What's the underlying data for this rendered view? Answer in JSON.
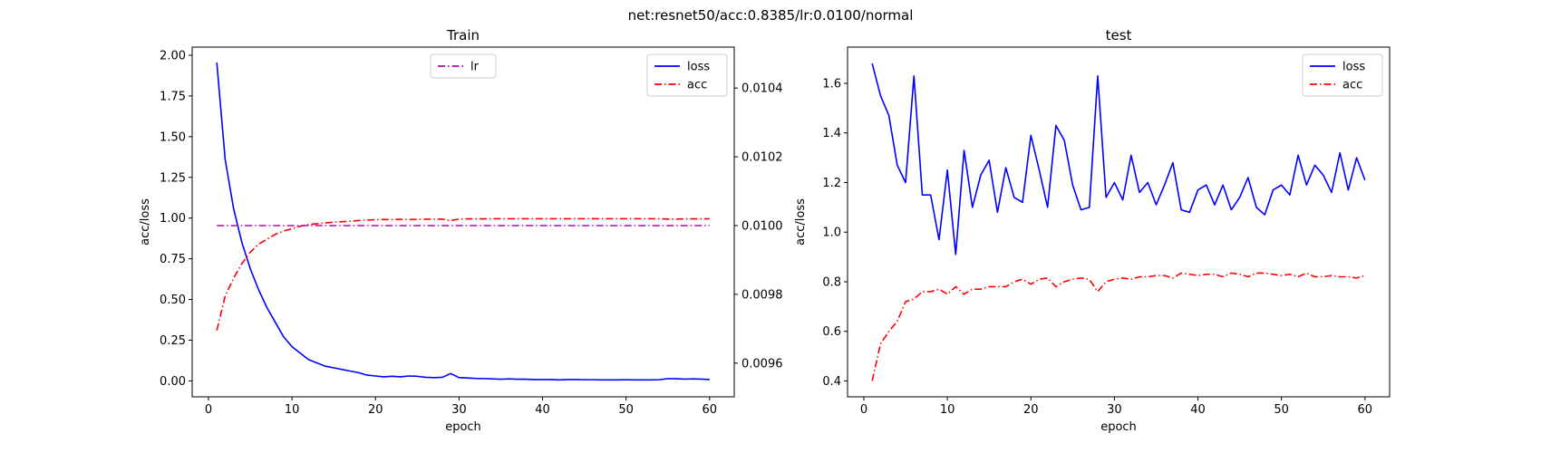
{
  "suptitle": "net:resnet50/acc:0.8385/lr:0.0100/normal",
  "chart_data": [
    {
      "type": "line",
      "title": "Train",
      "xlabel": "epoch",
      "ylabel": "acc/loss",
      "xlim": [
        -1.95,
        62.95
      ],
      "ylim": [
        -0.098,
        2.05
      ],
      "xticks": [
        0,
        10,
        20,
        30,
        40,
        50,
        60
      ],
      "yticks": [
        0.0,
        0.25,
        0.5,
        0.75,
        1.0,
        1.25,
        1.5,
        1.75,
        2.0
      ],
      "ytick_labels": [
        "0.00",
        "0.25",
        "0.50",
        "0.75",
        "1.00",
        "1.25",
        "1.50",
        "1.75",
        "2.00"
      ],
      "y2lim": [
        0.009502,
        0.010519
      ],
      "y2ticks": [
        0.0096,
        0.0098,
        0.01,
        0.0102,
        0.0104
      ],
      "y2tick_labels": [
        "0.0096",
        "0.0098",
        "0.0100",
        "0.0102",
        "0.0104"
      ],
      "x": [
        1,
        2,
        3,
        4,
        5,
        6,
        7,
        8,
        9,
        10,
        11,
        12,
        13,
        14,
        15,
        16,
        17,
        18,
        19,
        20,
        21,
        22,
        23,
        24,
        25,
        26,
        27,
        28,
        29,
        30,
        31,
        32,
        33,
        34,
        35,
        36,
        37,
        38,
        39,
        40,
        41,
        42,
        43,
        44,
        45,
        46,
        47,
        48,
        49,
        50,
        51,
        52,
        53,
        54,
        55,
        56,
        57,
        58,
        59,
        60
      ],
      "series": [
        {
          "name": "loss",
          "axis": "left",
          "color": "#0000ff",
          "style": "solid",
          "values": [
            1.955,
            1.36,
            1.06,
            0.85,
            0.69,
            0.56,
            0.45,
            0.36,
            0.27,
            0.21,
            0.17,
            0.13,
            0.11,
            0.09,
            0.08,
            0.07,
            0.06,
            0.05,
            0.035,
            0.03,
            0.025,
            0.028,
            0.025,
            0.03,
            0.028,
            0.022,
            0.02,
            0.022,
            0.045,
            0.02,
            0.018,
            0.015,
            0.014,
            0.012,
            0.01,
            0.012,
            0.01,
            0.01,
            0.008,
            0.008,
            0.008,
            0.006,
            0.008,
            0.008,
            0.007,
            0.007,
            0.006,
            0.006,
            0.006,
            0.007,
            0.006,
            0.006,
            0.006,
            0.007,
            0.014,
            0.013,
            0.011,
            0.012,
            0.011,
            0.008
          ]
        },
        {
          "name": "acc",
          "axis": "left",
          "color": "#ff0000",
          "style": "dashdot",
          "values": [
            0.31,
            0.52,
            0.63,
            0.72,
            0.79,
            0.84,
            0.87,
            0.9,
            0.92,
            0.935,
            0.95,
            0.96,
            0.965,
            0.97,
            0.975,
            0.978,
            0.98,
            0.985,
            0.988,
            0.99,
            0.991,
            0.991,
            0.992,
            0.991,
            0.992,
            0.993,
            0.993,
            0.993,
            0.984,
            0.994,
            0.995,
            0.995,
            0.995,
            0.996,
            0.996,
            0.996,
            0.996,
            0.996,
            0.996,
            0.996,
            0.996,
            0.996,
            0.996,
            0.996,
            0.996,
            0.996,
            0.996,
            0.996,
            0.996,
            0.996,
            0.996,
            0.996,
            0.996,
            0.996,
            0.994,
            0.994,
            0.995,
            0.995,
            0.995,
            0.996
          ]
        },
        {
          "name": "lr",
          "axis": "right",
          "color": "#bf00bf",
          "style": "dashdot",
          "values": [
            0.01,
            0.01,
            0.01,
            0.01,
            0.01,
            0.01,
            0.01,
            0.01,
            0.01,
            0.01,
            0.01,
            0.01,
            0.01,
            0.01,
            0.01,
            0.01,
            0.01,
            0.01,
            0.01,
            0.01,
            0.01,
            0.01,
            0.01,
            0.01,
            0.01,
            0.01,
            0.01,
            0.01,
            0.01,
            0.01,
            0.01,
            0.01,
            0.01,
            0.01,
            0.01,
            0.01,
            0.01,
            0.01,
            0.01,
            0.01,
            0.01,
            0.01,
            0.01,
            0.01,
            0.01,
            0.01,
            0.01,
            0.01,
            0.01,
            0.01,
            0.01,
            0.01,
            0.01,
            0.01,
            0.01,
            0.01,
            0.01,
            0.01,
            0.01,
            0.01
          ]
        }
      ],
      "legends": [
        {
          "placement": "upper-right",
          "entries": [
            "loss",
            "acc"
          ]
        },
        {
          "placement": "upper-center",
          "entries": [
            "lr"
          ]
        }
      ],
      "grid": false
    },
    {
      "type": "line",
      "title": "test",
      "xlabel": "epoch",
      "ylabel": "acc/loss",
      "xlim": [
        -1.95,
        62.95
      ],
      "ylim": [
        0.336,
        1.746
      ],
      "xticks": [
        0,
        10,
        20,
        30,
        40,
        50,
        60
      ],
      "yticks": [
        0.4,
        0.6,
        0.8,
        1.0,
        1.2,
        1.4,
        1.6
      ],
      "ytick_labels": [
        "0.4",
        "0.6",
        "0.8",
        "1.0",
        "1.2",
        "1.4",
        "1.6"
      ],
      "x": [
        1,
        2,
        3,
        4,
        5,
        6,
        7,
        8,
        9,
        10,
        11,
        12,
        13,
        14,
        15,
        16,
        17,
        18,
        19,
        20,
        21,
        22,
        23,
        24,
        25,
        26,
        27,
        28,
        29,
        30,
        31,
        32,
        33,
        34,
        35,
        36,
        37,
        38,
        39,
        40,
        41,
        42,
        43,
        44,
        45,
        46,
        47,
        48,
        49,
        50,
        51,
        52,
        53,
        54,
        55,
        56,
        57,
        58,
        59,
        60
      ],
      "series": [
        {
          "name": "loss",
          "color": "#0000ff",
          "style": "solid",
          "values": [
            1.68,
            1.55,
            1.47,
            1.27,
            1.2,
            1.63,
            1.15,
            1.15,
            0.97,
            1.25,
            0.91,
            1.33,
            1.1,
            1.23,
            1.29,
            1.08,
            1.26,
            1.14,
            1.12,
            1.39,
            1.25,
            1.1,
            1.43,
            1.37,
            1.19,
            1.09,
            1.1,
            1.63,
            1.14,
            1.2,
            1.13,
            1.31,
            1.16,
            1.2,
            1.11,
            1.19,
            1.28,
            1.09,
            1.08,
            1.17,
            1.19,
            1.11,
            1.19,
            1.09,
            1.14,
            1.22,
            1.1,
            1.07,
            1.17,
            1.19,
            1.15,
            1.31,
            1.19,
            1.27,
            1.23,
            1.16,
            1.32,
            1.17,
            1.3,
            1.21
          ]
        },
        {
          "name": "acc",
          "color": "#ff0000",
          "style": "dashdot",
          "values": [
            0.4,
            0.55,
            0.6,
            0.64,
            0.72,
            0.73,
            0.76,
            0.76,
            0.77,
            0.75,
            0.78,
            0.75,
            0.77,
            0.77,
            0.78,
            0.78,
            0.78,
            0.8,
            0.81,
            0.79,
            0.81,
            0.815,
            0.78,
            0.8,
            0.81,
            0.815,
            0.81,
            0.76,
            0.8,
            0.81,
            0.815,
            0.81,
            0.82,
            0.82,
            0.825,
            0.825,
            0.815,
            0.835,
            0.83,
            0.825,
            0.83,
            0.83,
            0.82,
            0.835,
            0.83,
            0.82,
            0.835,
            0.835,
            0.83,
            0.825,
            0.83,
            0.82,
            0.835,
            0.82,
            0.82,
            0.825,
            0.82,
            0.82,
            0.815,
            0.825
          ]
        }
      ],
      "legends": [
        {
          "placement": "upper-right",
          "entries": [
            "loss",
            "acc"
          ]
        }
      ],
      "grid": false
    }
  ]
}
